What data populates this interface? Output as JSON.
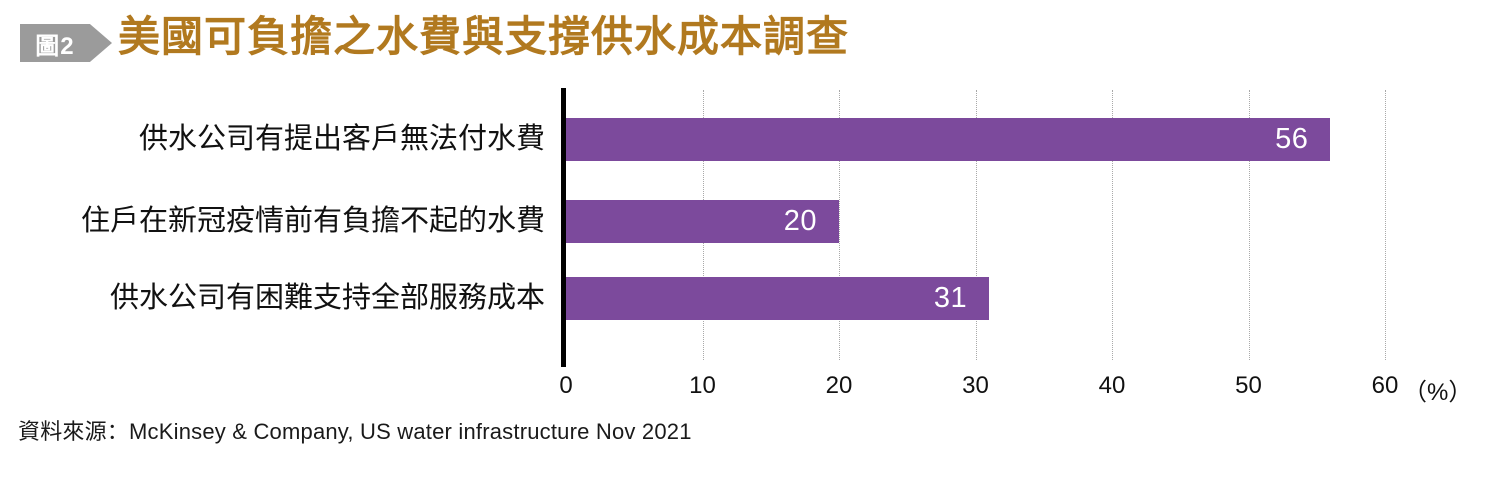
{
  "figure_badge": {
    "label": "圖2"
  },
  "title": "美國可負擔之水費與支撐供水成本調查",
  "source": "資料來源：McKinsey & Company, US water infrastructure Nov 2021",
  "chart_data": {
    "type": "bar",
    "orientation": "horizontal",
    "title": "美國可負擔之水費與支撐供水成本調查",
    "categories": [
      "供水公司有提出客戶無法付水費",
      "住戶在新冠疫情前有負擔不起的水費",
      "供水公司有困難支持全部服務成本"
    ],
    "values": [
      56,
      20,
      31
    ],
    "xlim": [
      0,
      60
    ],
    "xticks": [
      "0",
      "10",
      "20",
      "30",
      "40",
      "50",
      "60"
    ],
    "unit_label": "（%）",
    "grid": "vertical-dotted",
    "legend": "none"
  },
  "colors": {
    "bar": "#7c4a9c",
    "value_label": "#ffffff",
    "title": "#b1791f",
    "badge_bg": "#9b9b9b",
    "badge_text": "#ffffff",
    "axis": "#000000",
    "gridline": "#a9a9a9"
  }
}
